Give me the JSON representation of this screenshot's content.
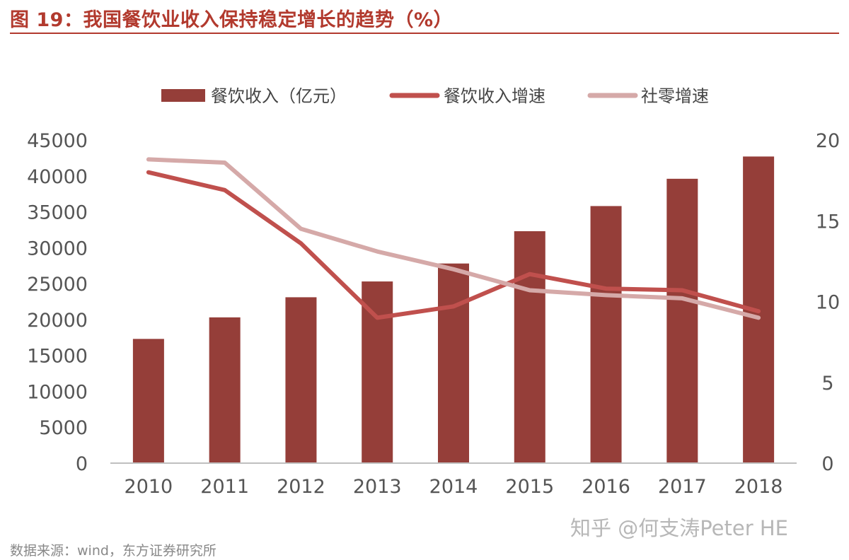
{
  "title": "图 19：我国餐饮业收入保持稳定增长的趋势（%）",
  "source": "数据来源：wind，东方证券研究所",
  "watermark": "知乎 @何支涛Peter HE",
  "chart_data": {
    "type": "bar",
    "categories": [
      "2010",
      "2011",
      "2012",
      "2013",
      "2014",
      "2015",
      "2016",
      "2017",
      "2018"
    ],
    "series": [
      {
        "name": "餐饮收入（亿元）",
        "type": "bar",
        "axis": "left",
        "color": "#953e39",
        "values": [
          17300,
          20300,
          23100,
          25300,
          27800,
          32300,
          35800,
          39600,
          42700
        ]
      },
      {
        "name": "餐饮收入增速",
        "type": "line",
        "axis": "right",
        "color": "#c0504d",
        "values": [
          18.0,
          16.9,
          13.6,
          9.0,
          9.7,
          11.7,
          10.8,
          10.7,
          9.4
        ]
      },
      {
        "name": "社零增速",
        "type": "line",
        "axis": "right",
        "color": "#d5a9a8",
        "values": [
          18.8,
          18.6,
          14.5,
          13.1,
          12.0,
          10.7,
          10.4,
          10.2,
          9.0
        ]
      }
    ],
    "y_left": {
      "min": 0,
      "max": 45000,
      "ticks": [
        "0",
        "5000",
        "10000",
        "15000",
        "20000",
        "25000",
        "30000",
        "35000",
        "40000",
        "45000"
      ]
    },
    "y_right": {
      "min": 0,
      "max": 20,
      "ticks": [
        "0",
        "5",
        "10",
        "15",
        "20"
      ]
    },
    "grid": false,
    "legend_position": "top-center"
  }
}
